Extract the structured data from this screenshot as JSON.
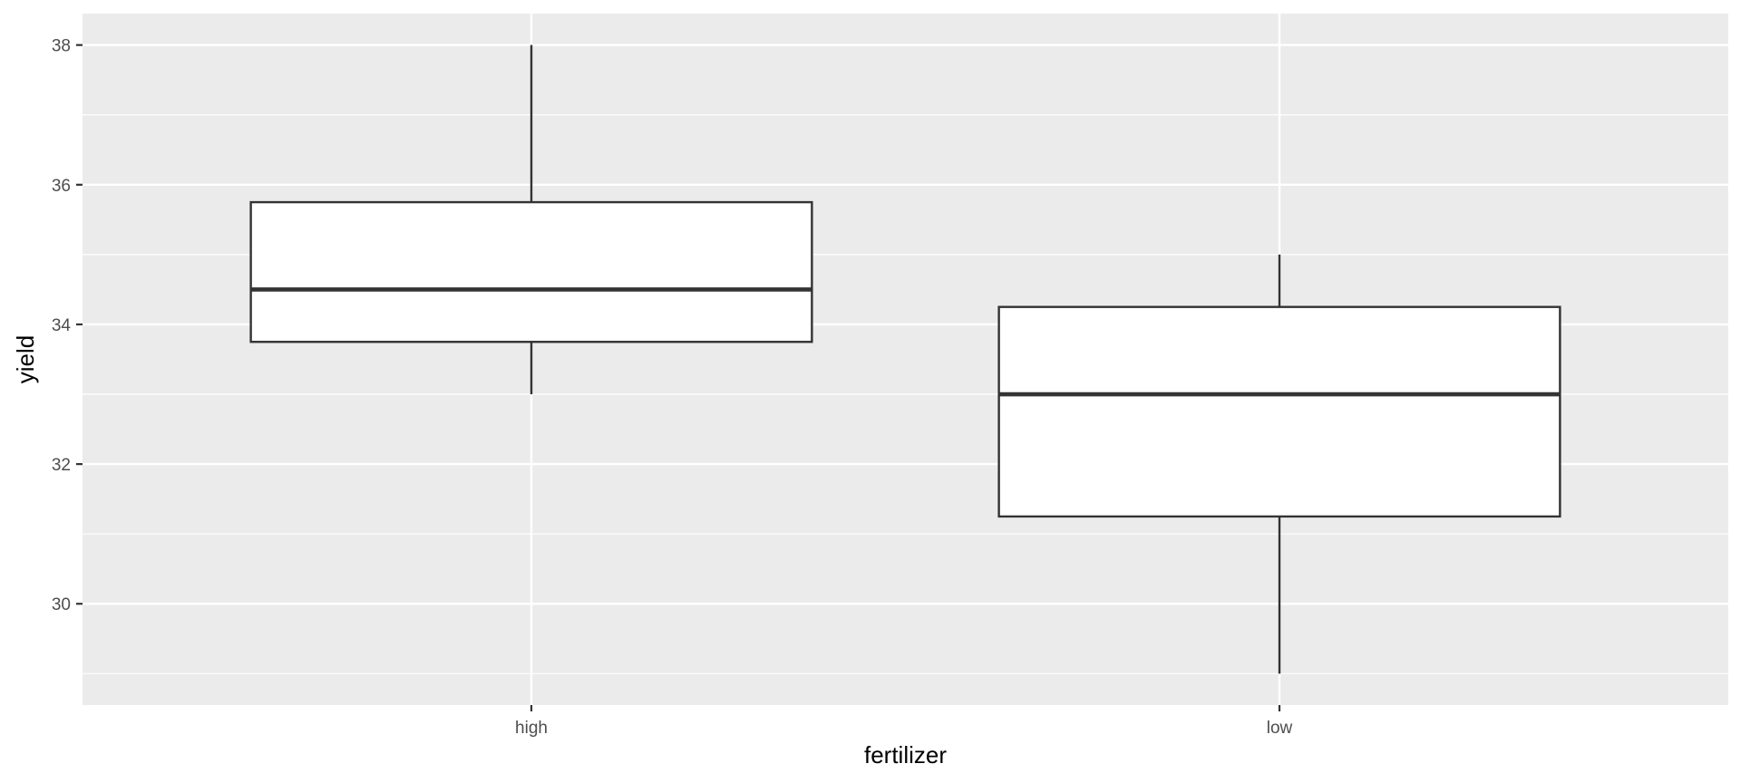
{
  "chart_data": {
    "type": "boxplot",
    "xlabel": "fertilizer",
    "ylabel": "yield",
    "categories": [
      "high",
      "low"
    ],
    "boxes": [
      {
        "category": "high",
        "whisker_low": 33.0,
        "q1": 33.75,
        "median": 34.5,
        "q3": 35.75,
        "whisker_high": 38.0
      },
      {
        "category": "low",
        "whisker_low": 29.0,
        "q1": 31.25,
        "median": 33.0,
        "q3": 34.25,
        "whisker_high": 35.0
      }
    ],
    "ylim": [
      28.55,
      38.45
    ],
    "y_ticks": [
      30,
      32,
      34,
      36,
      38
    ],
    "y_tick_labels": [
      "30",
      "32",
      "34",
      "36",
      "38"
    ],
    "grid": true,
    "colors": {
      "panel_background": "#ebebeb",
      "grid_line": "#ffffff",
      "box_fill": "#ffffff",
      "box_outline": "#333333",
      "tick_mark": "#333333",
      "tick_label": "#4d4d4d"
    }
  }
}
